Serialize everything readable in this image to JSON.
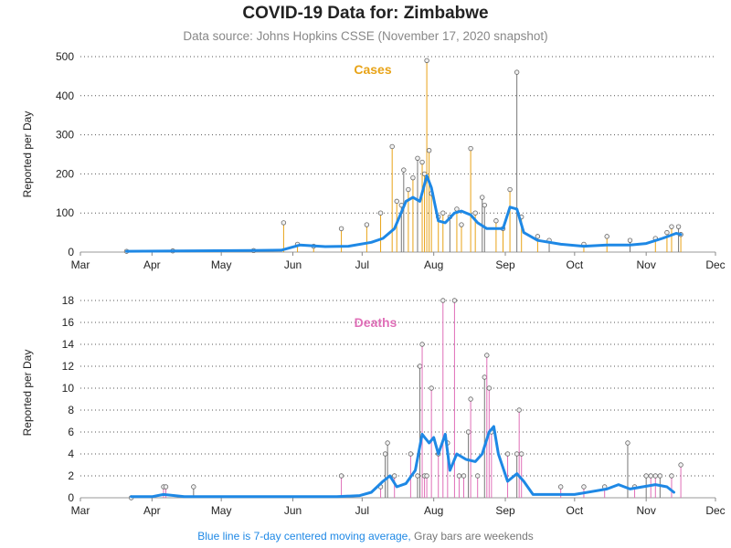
{
  "title": "COVID-19 Data for: Zimbabwe",
  "subtitle": "Data source: Johns Hopkins CSSE (November 17, 2020 snapshot)",
  "footnote": {
    "moving_average_note": "Blue line is 7-day centered moving average,",
    "weekend_note": "Gray bars are weekends"
  },
  "colors": {
    "cases": "#e8a317",
    "deaths": "#e06fb8",
    "moving_average": "#1e88e5",
    "weekend": "#777777",
    "grid": "#555555"
  },
  "chart_data": [
    {
      "type": "bar",
      "label": "Cases",
      "ylabel": "Reported per Day",
      "xlabel": "",
      "x_range": [
        "2020-03-01",
        "2020-12-01"
      ],
      "x_ticks": [
        {
          "date": "2020-03-01",
          "label": "Mar"
        },
        {
          "date": "2020-04-01",
          "label": "Apr"
        },
        {
          "date": "2020-05-01",
          "label": "May"
        },
        {
          "date": "2020-06-01",
          "label": "Jun"
        },
        {
          "date": "2020-07-01",
          "label": "Jul"
        },
        {
          "date": "2020-08-01",
          "label": "Aug"
        },
        {
          "date": "2020-09-01",
          "label": "Sep"
        },
        {
          "date": "2020-10-01",
          "label": "Oct"
        },
        {
          "date": "2020-11-01",
          "label": "Nov"
        },
        {
          "date": "2020-12-01",
          "label": "Dec"
        }
      ],
      "ylim": [
        0,
        500
      ],
      "y_ticks": [
        0,
        100,
        200,
        300,
        400,
        500
      ],
      "grid": "horizontal dotted",
      "series_highlights": [
        {
          "date": "2020-03-21",
          "value": 2
        },
        {
          "date": "2020-04-10",
          "value": 3
        },
        {
          "date": "2020-05-15",
          "value": 4
        },
        {
          "date": "2020-05-28",
          "value": 75
        },
        {
          "date": "2020-06-03",
          "value": 20
        },
        {
          "date": "2020-06-10",
          "value": 15
        },
        {
          "date": "2020-06-22",
          "value": 60
        },
        {
          "date": "2020-07-03",
          "value": 70
        },
        {
          "date": "2020-07-09",
          "value": 100
        },
        {
          "date": "2020-07-14",
          "value": 270
        },
        {
          "date": "2020-07-16",
          "value": 130
        },
        {
          "date": "2020-07-18",
          "value": 120
        },
        {
          "date": "2020-07-19",
          "value": 210
        },
        {
          "date": "2020-07-21",
          "value": 160
        },
        {
          "date": "2020-07-23",
          "value": 190
        },
        {
          "date": "2020-07-25",
          "value": 240
        },
        {
          "date": "2020-07-27",
          "value": 230
        },
        {
          "date": "2020-07-28",
          "value": 200
        },
        {
          "date": "2020-07-29",
          "value": 490
        },
        {
          "date": "2020-07-30",
          "value": 260
        },
        {
          "date": "2020-07-31",
          "value": 150
        },
        {
          "date": "2020-08-03",
          "value": 90
        },
        {
          "date": "2020-08-05",
          "value": 100
        },
        {
          "date": "2020-08-08",
          "value": 90
        },
        {
          "date": "2020-08-11",
          "value": 110
        },
        {
          "date": "2020-08-13",
          "value": 70
        },
        {
          "date": "2020-08-17",
          "value": 265
        },
        {
          "date": "2020-08-19",
          "value": 100
        },
        {
          "date": "2020-08-22",
          "value": 140
        },
        {
          "date": "2020-08-23",
          "value": 120
        },
        {
          "date": "2020-08-28",
          "value": 80
        },
        {
          "date": "2020-08-31",
          "value": 60
        },
        {
          "date": "2020-09-03",
          "value": 160
        },
        {
          "date": "2020-09-06",
          "value": 460
        },
        {
          "date": "2020-09-08",
          "value": 90
        },
        {
          "date": "2020-09-15",
          "value": 40
        },
        {
          "date": "2020-09-20",
          "value": 30
        },
        {
          "date": "2020-10-05",
          "value": 20
        },
        {
          "date": "2020-10-15",
          "value": 40
        },
        {
          "date": "2020-10-25",
          "value": 30
        },
        {
          "date": "2020-11-05",
          "value": 35
        },
        {
          "date": "2020-11-10",
          "value": 50
        },
        {
          "date": "2020-11-12",
          "value": 65
        },
        {
          "date": "2020-11-15",
          "value": 65
        },
        {
          "date": "2020-11-16",
          "value": 45
        }
      ],
      "moving_average": [
        {
          "date": "2020-03-21",
          "value": 2
        },
        {
          "date": "2020-05-15",
          "value": 4
        },
        {
          "date": "2020-05-27",
          "value": 5
        },
        {
          "date": "2020-06-04",
          "value": 18
        },
        {
          "date": "2020-06-15",
          "value": 14
        },
        {
          "date": "2020-06-25",
          "value": 15
        },
        {
          "date": "2020-07-05",
          "value": 25
        },
        {
          "date": "2020-07-10",
          "value": 35
        },
        {
          "date": "2020-07-15",
          "value": 60
        },
        {
          "date": "2020-07-20",
          "value": 130
        },
        {
          "date": "2020-07-23",
          "value": 140
        },
        {
          "date": "2020-07-26",
          "value": 130
        },
        {
          "date": "2020-07-29",
          "value": 195
        },
        {
          "date": "2020-07-31",
          "value": 165
        },
        {
          "date": "2020-08-03",
          "value": 80
        },
        {
          "date": "2020-08-06",
          "value": 75
        },
        {
          "date": "2020-08-10",
          "value": 100
        },
        {
          "date": "2020-08-13",
          "value": 105
        },
        {
          "date": "2020-08-17",
          "value": 95
        },
        {
          "date": "2020-08-20",
          "value": 75
        },
        {
          "date": "2020-08-24",
          "value": 60
        },
        {
          "date": "2020-08-28",
          "value": 60
        },
        {
          "date": "2020-08-31",
          "value": 60
        },
        {
          "date": "2020-09-03",
          "value": 115
        },
        {
          "date": "2020-09-06",
          "value": 110
        },
        {
          "date": "2020-09-09",
          "value": 50
        },
        {
          "date": "2020-09-15",
          "value": 30
        },
        {
          "date": "2020-09-25",
          "value": 20
        },
        {
          "date": "2020-10-05",
          "value": 15
        },
        {
          "date": "2020-10-15",
          "value": 18
        },
        {
          "date": "2020-10-25",
          "value": 18
        },
        {
          "date": "2020-11-01",
          "value": 22
        },
        {
          "date": "2020-11-08",
          "value": 35
        },
        {
          "date": "2020-11-14",
          "value": 48
        },
        {
          "date": "2020-11-16",
          "value": 45
        }
      ]
    },
    {
      "type": "bar",
      "label": "Deaths",
      "ylabel": "Reported per Day",
      "xlabel": "",
      "x_range": [
        "2020-03-01",
        "2020-12-01"
      ],
      "x_ticks": [
        {
          "date": "2020-03-01",
          "label": "Mar"
        },
        {
          "date": "2020-04-01",
          "label": "Apr"
        },
        {
          "date": "2020-05-01",
          "label": "May"
        },
        {
          "date": "2020-06-01",
          "label": "Jun"
        },
        {
          "date": "2020-07-01",
          "label": "Jul"
        },
        {
          "date": "2020-08-01",
          "label": "Aug"
        },
        {
          "date": "2020-09-01",
          "label": "Sep"
        },
        {
          "date": "2020-10-01",
          "label": "Oct"
        },
        {
          "date": "2020-11-01",
          "label": "Nov"
        },
        {
          "date": "2020-12-01",
          "label": "Dec"
        }
      ],
      "ylim": [
        0,
        18
      ],
      "y_ticks": [
        0,
        2,
        4,
        6,
        8,
        10,
        12,
        14,
        16,
        18
      ],
      "grid": "horizontal dotted",
      "series_highlights": [
        {
          "date": "2020-03-23",
          "value": 0
        },
        {
          "date": "2020-04-06",
          "value": 1
        },
        {
          "date": "2020-04-07",
          "value": 1
        },
        {
          "date": "2020-04-19",
          "value": 1
        },
        {
          "date": "2020-06-22",
          "value": 2
        },
        {
          "date": "2020-07-09",
          "value": 1
        },
        {
          "date": "2020-07-11",
          "value": 4
        },
        {
          "date": "2020-07-12",
          "value": 5
        },
        {
          "date": "2020-07-15",
          "value": 2
        },
        {
          "date": "2020-07-22",
          "value": 4
        },
        {
          "date": "2020-07-25",
          "value": 2
        },
        {
          "date": "2020-07-26",
          "value": 12
        },
        {
          "date": "2020-07-27",
          "value": 14
        },
        {
          "date": "2020-07-28",
          "value": 2
        },
        {
          "date": "2020-07-29",
          "value": 2
        },
        {
          "date": "2020-07-31",
          "value": 10
        },
        {
          "date": "2020-08-03",
          "value": 4
        },
        {
          "date": "2020-08-05",
          "value": 18
        },
        {
          "date": "2020-08-07",
          "value": 5
        },
        {
          "date": "2020-08-10",
          "value": 18
        },
        {
          "date": "2020-08-12",
          "value": 2
        },
        {
          "date": "2020-08-14",
          "value": 2
        },
        {
          "date": "2020-08-16",
          "value": 6
        },
        {
          "date": "2020-08-17",
          "value": 9
        },
        {
          "date": "2020-08-20",
          "value": 2
        },
        {
          "date": "2020-08-23",
          "value": 11
        },
        {
          "date": "2020-08-24",
          "value": 13
        },
        {
          "date": "2020-08-25",
          "value": 10
        },
        {
          "date": "2020-08-26",
          "value": 6
        },
        {
          "date": "2020-09-02",
          "value": 4
        },
        {
          "date": "2020-09-06",
          "value": 4
        },
        {
          "date": "2020-09-07",
          "value": 8
        },
        {
          "date": "2020-09-08",
          "value": 4
        },
        {
          "date": "2020-09-25",
          "value": 1
        },
        {
          "date": "2020-10-05",
          "value": 1
        },
        {
          "date": "2020-10-14",
          "value": 1
        },
        {
          "date": "2020-10-24",
          "value": 5
        },
        {
          "date": "2020-10-27",
          "value": 1
        },
        {
          "date": "2020-11-01",
          "value": 2
        },
        {
          "date": "2020-11-03",
          "value": 2
        },
        {
          "date": "2020-11-05",
          "value": 2
        },
        {
          "date": "2020-11-07",
          "value": 2
        },
        {
          "date": "2020-11-12",
          "value": 2
        },
        {
          "date": "2020-11-16",
          "value": 3
        }
      ],
      "moving_average": [
        {
          "date": "2020-03-23",
          "value": 0.1
        },
        {
          "date": "2020-04-01",
          "value": 0.1
        },
        {
          "date": "2020-04-06",
          "value": 0.3
        },
        {
          "date": "2020-04-15",
          "value": 0.1
        },
        {
          "date": "2020-06-20",
          "value": 0.1
        },
        {
          "date": "2020-06-30",
          "value": 0.2
        },
        {
          "date": "2020-07-05",
          "value": 0.5
        },
        {
          "date": "2020-07-10",
          "value": 1.5
        },
        {
          "date": "2020-07-13",
          "value": 2.0
        },
        {
          "date": "2020-07-16",
          "value": 1.0
        },
        {
          "date": "2020-07-20",
          "value": 1.3
        },
        {
          "date": "2020-07-24",
          "value": 2.5
        },
        {
          "date": "2020-07-27",
          "value": 5.8
        },
        {
          "date": "2020-07-30",
          "value": 5.0
        },
        {
          "date": "2020-08-01",
          "value": 5.5
        },
        {
          "date": "2020-08-03",
          "value": 4.0
        },
        {
          "date": "2020-08-06",
          "value": 5.8
        },
        {
          "date": "2020-08-08",
          "value": 2.5
        },
        {
          "date": "2020-08-11",
          "value": 4.0
        },
        {
          "date": "2020-08-15",
          "value": 3.5
        },
        {
          "date": "2020-08-19",
          "value": 3.3
        },
        {
          "date": "2020-08-22",
          "value": 4.0
        },
        {
          "date": "2020-08-25",
          "value": 6.0
        },
        {
          "date": "2020-08-27",
          "value": 6.5
        },
        {
          "date": "2020-08-29",
          "value": 4.0
        },
        {
          "date": "2020-09-02",
          "value": 1.5
        },
        {
          "date": "2020-09-06",
          "value": 2.2
        },
        {
          "date": "2020-09-09",
          "value": 1.5
        },
        {
          "date": "2020-09-13",
          "value": 0.3
        },
        {
          "date": "2020-10-01",
          "value": 0.3
        },
        {
          "date": "2020-10-15",
          "value": 0.8
        },
        {
          "date": "2020-10-20",
          "value": 1.2
        },
        {
          "date": "2020-10-25",
          "value": 0.8
        },
        {
          "date": "2020-11-05",
          "value": 1.2
        },
        {
          "date": "2020-11-10",
          "value": 1.0
        },
        {
          "date": "2020-11-13",
          "value": 0.5
        }
      ]
    }
  ]
}
